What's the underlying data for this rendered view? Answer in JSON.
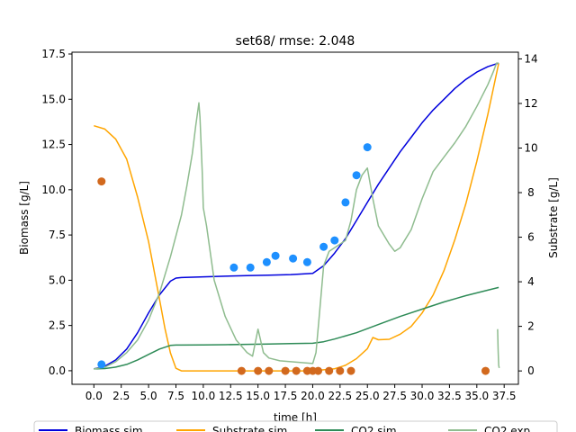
{
  "chart_data": {
    "type": "line",
    "title": "set68/ rmse: 2.048",
    "xlabel": "time [h]",
    "ylabel": "Biomass [g/L]",
    "y2label": "Substrate [g/L]",
    "xlim": [
      -2.0,
      38.8
    ],
    "ylim": [
      -0.75,
      17.6
    ],
    "y2lim": [
      -0.6,
      14.3
    ],
    "xticks": [
      "0.0",
      "2.5",
      "5.0",
      "7.5",
      "10.0",
      "12.5",
      "15.0",
      "17.5",
      "20.0",
      "22.5",
      "25.0",
      "27.5",
      "30.0",
      "32.5",
      "35.0",
      "37.5"
    ],
    "yticks": [
      "0.0",
      "2.5",
      "5.0",
      "7.5",
      "10.0",
      "12.5",
      "15.0",
      "17.5"
    ],
    "y2ticks": [
      "0",
      "2",
      "4",
      "6",
      "8",
      "10",
      "12",
      "14"
    ],
    "legend_position": "bottom",
    "legend": [
      "Biomass sim",
      "Substrate sim",
      "CO2 sim",
      "CO2 exp"
    ],
    "series": [
      {
        "name": "Biomass sim",
        "color": "#0000dd",
        "axis": "left",
        "x": [
          0,
          1,
          2,
          3,
          4,
          5,
          6,
          7,
          7.5,
          8,
          9,
          10,
          12,
          14,
          16,
          18,
          20,
          21,
          22,
          23,
          24,
          25,
          26,
          27,
          28,
          29,
          30,
          31,
          32,
          33,
          34,
          35,
          36,
          37
        ],
        "y": [
          0.1,
          0.25,
          0.6,
          1.2,
          2.1,
          3.2,
          4.2,
          4.95,
          5.12,
          5.15,
          5.17,
          5.19,
          5.22,
          5.25,
          5.28,
          5.31,
          5.38,
          5.8,
          6.5,
          7.3,
          8.3,
          9.3,
          10.3,
          11.2,
          12.1,
          12.9,
          13.7,
          14.4,
          15.0,
          15.6,
          16.1,
          16.5,
          16.8,
          17.0
        ]
      },
      {
        "name": "Substrate sim",
        "color": "#ffa500",
        "axis": "right",
        "x": [
          0,
          1,
          2,
          3,
          4,
          5,
          6,
          6.5,
          7,
          7.5,
          8,
          9,
          10,
          12,
          14,
          16,
          18,
          20,
          21,
          22,
          23,
          24,
          25,
          25.5,
          26,
          27,
          28,
          29,
          30,
          31,
          32,
          33,
          34,
          35,
          36,
          37
        ],
        "y": [
          11.0,
          10.85,
          10.4,
          9.5,
          7.8,
          5.8,
          3.2,
          1.9,
          0.8,
          0.12,
          0.0,
          0.0,
          0.0,
          0.0,
          0.0,
          0.0,
          0.0,
          0.0,
          0.05,
          0.1,
          0.25,
          0.55,
          1.0,
          1.5,
          1.4,
          1.42,
          1.65,
          2.0,
          2.6,
          3.4,
          4.5,
          5.9,
          7.5,
          9.4,
          11.5,
          13.8
        ]
      },
      {
        "name": "CO2 sim",
        "color": "#2e8b57",
        "axis": "left",
        "x": [
          0,
          1,
          2,
          3,
          4,
          5,
          6,
          7,
          7.5,
          8,
          10,
          12,
          14,
          16,
          18,
          20,
          21,
          22,
          24,
          26,
          28,
          30,
          32,
          34,
          36,
          37
        ],
        "y": [
          0.1,
          0.12,
          0.2,
          0.35,
          0.6,
          0.9,
          1.2,
          1.4,
          1.42,
          1.42,
          1.43,
          1.44,
          1.46,
          1.48,
          1.5,
          1.52,
          1.6,
          1.75,
          2.1,
          2.55,
          3.0,
          3.4,
          3.8,
          4.15,
          4.45,
          4.6
        ]
      },
      {
        "name": "CO2 exp",
        "color": "#8fbc8f",
        "axis": "left",
        "x": [
          0,
          1,
          2,
          3,
          4,
          5,
          6,
          7,
          8,
          8.5,
          9,
          9.3,
          9.6,
          9.7,
          9.9,
          10,
          10.3,
          11,
          12,
          13,
          14,
          14.5,
          15,
          15.5,
          16,
          17,
          18,
          19,
          20,
          20.3,
          20.6,
          21,
          21.5,
          22,
          23,
          23.5,
          24,
          24.5,
          25,
          25.5,
          26,
          27,
          27.5,
          28,
          29,
          30,
          31,
          32,
          33,
          34,
          35,
          36,
          36.5,
          36.8,
          37
        ],
        "y": [
          0.1,
          0.2,
          0.5,
          1.0,
          1.7,
          2.8,
          4.3,
          6.3,
          8.6,
          10.2,
          12.0,
          13.5,
          14.8,
          14.0,
          11.0,
          9.0,
          8.0,
          5.0,
          3.0,
          1.7,
          1.0,
          0.8,
          2.3,
          1.0,
          0.7,
          0.55,
          0.5,
          0.45,
          0.4,
          1.0,
          3.0,
          5.8,
          6.6,
          6.8,
          7.2,
          8.3,
          10.0,
          10.8,
          11.2,
          9.5,
          8.0,
          7.0,
          6.6,
          6.8,
          7.8,
          9.5,
          11.0,
          11.8,
          12.6,
          13.5,
          14.6,
          15.8,
          16.5,
          17.0,
          17.0
        ]
      },
      {
        "name": "CO2 exp tail",
        "color": "#8fbc8f",
        "axis": "left",
        "x": [
          36.9,
          36.95,
          37.0,
          37.05
        ],
        "y": [
          2.3,
          1.1,
          0.3,
          0.15
        ]
      }
    ],
    "points": [
      {
        "name": "Biomass exp",
        "color": "#1e90ff",
        "axis": "left",
        "x": [
          0.7,
          12.8,
          14.3,
          15.8,
          16.6,
          18.2,
          19.5,
          21.0,
          22.0,
          23.0,
          24.0,
          25.0
        ],
        "y": [
          0.35,
          5.7,
          5.7,
          6.0,
          6.35,
          6.2,
          6.0,
          6.85,
          7.2,
          9.3,
          10.8,
          12.35
        ]
      },
      {
        "name": "Substrate exp",
        "color": "#d2691e",
        "axis": "right",
        "x": [
          0.7,
          13.5,
          15.0,
          16.0,
          17.5,
          18.5,
          19.5,
          20.0,
          20.5,
          21.5,
          22.5,
          23.5,
          35.8
        ],
        "y": [
          8.5,
          0.0,
          0.0,
          0.0,
          0.0,
          0.0,
          0.0,
          0.0,
          0.0,
          0.0,
          0.0,
          0.0,
          0.0
        ]
      }
    ]
  }
}
